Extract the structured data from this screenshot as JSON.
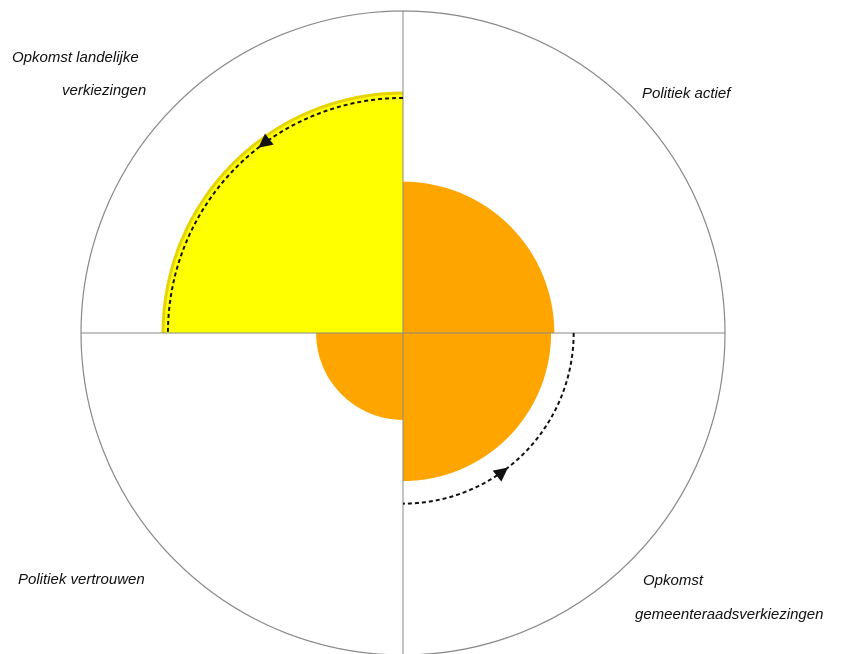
{
  "chart_data": {
    "type": "polar-area",
    "radius_max": 1.0,
    "categories": [
      {
        "label_lines": [
          "Opkomst landelijke",
          "verkiezingen"
        ],
        "value": 0.75,
        "previous_value": 0.73,
        "color": "#ffff00",
        "edge_color": "#e6d400",
        "trend": "up"
      },
      {
        "label_lines": [
          "Politiek actief"
        ],
        "value": 0.47,
        "color": "#ffa500"
      },
      {
        "label_lines": [
          "Opkomst",
          "gemeenteraadsverkiezingen"
        ],
        "value": 0.46,
        "previous_value": 0.53,
        "color": "#ffa500",
        "trend": "down"
      },
      {
        "label_lines": [
          "Politiek vertrouwen"
        ],
        "value": 0.27,
        "color": "#ffa500"
      }
    ],
    "grid_color": "#888888"
  }
}
